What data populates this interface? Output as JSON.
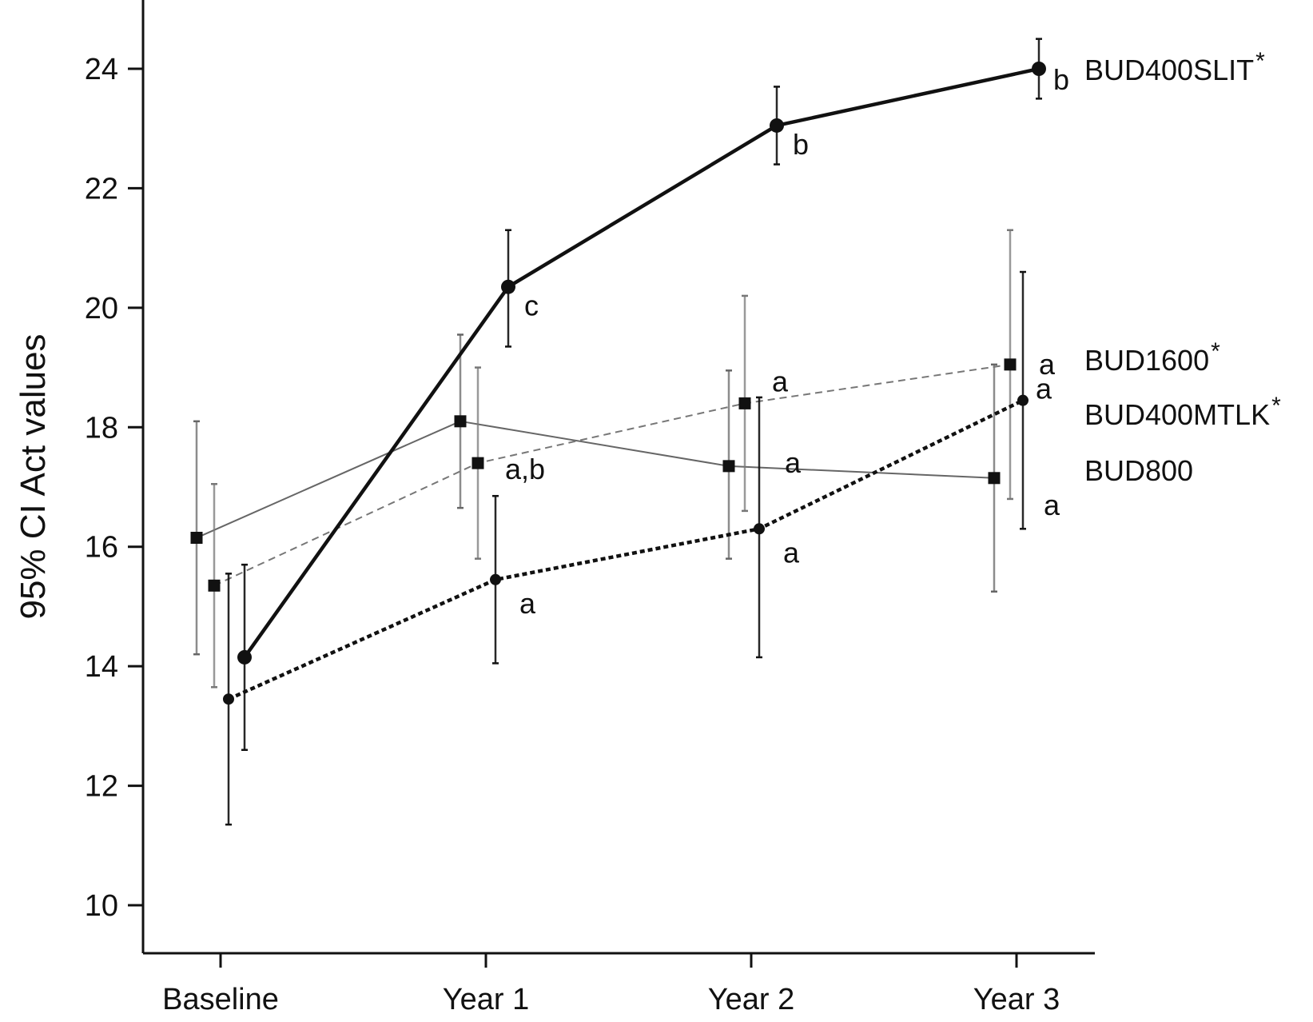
{
  "chart_data": {
    "type": "line",
    "title": "",
    "xlabel": "",
    "ylabel": "95% CI Act values",
    "categories": [
      "Baseline",
      "Year 1",
      "Year 2",
      "Year 3"
    ],
    "yticks": [
      10,
      12,
      14,
      16,
      18,
      20,
      22,
      24
    ],
    "ylim": [
      9.2,
      25.1
    ],
    "grid": false,
    "legend": "inline labels at right end of lines",
    "series": [
      {
        "name": "BUD400SLIT",
        "marker": "circle",
        "line": "solid-thick",
        "color": "#111111",
        "values": [
          14.15,
          20.35,
          23.05,
          24.0
        ],
        "ci_low": [
          12.6,
          19.35,
          22.4,
          23.5
        ],
        "ci_high": [
          15.7,
          21.3,
          23.7,
          24.5
        ],
        "annotations": [
          "",
          "c",
          "b",
          "b"
        ],
        "label_star": "*"
      },
      {
        "name": "BUD1600",
        "marker": "square",
        "line": "dashed-thin",
        "color": "#777777",
        "values": [
          15.35,
          17.4,
          18.4,
          19.05
        ],
        "ci_low": [
          13.65,
          15.8,
          16.6,
          16.8
        ],
        "ci_high": [
          17.05,
          19.0,
          20.2,
          21.3
        ],
        "annotations": [
          "",
          "a,b",
          "a",
          "a"
        ],
        "label_star": "*"
      },
      {
        "name": "BUD400MTLK",
        "marker": "circle",
        "line": "dotted-thick",
        "color": "#111111",
        "values": [
          13.45,
          15.45,
          16.3,
          18.45
        ],
        "ci_low": [
          11.35,
          14.05,
          14.15,
          16.3
        ],
        "ci_high": [
          15.55,
          16.85,
          18.5,
          20.6
        ],
        "annotations": [
          "",
          "a",
          "a",
          "a"
        ],
        "label_star": "*"
      },
      {
        "name": "BUD800",
        "marker": "square",
        "line": "solid-thin",
        "color": "#666666",
        "values": [
          16.15,
          18.1,
          17.35,
          17.15
        ],
        "ci_low": [
          14.2,
          16.65,
          15.8,
          15.25
        ],
        "ci_high": [
          18.1,
          19.55,
          18.95,
          19.05
        ],
        "annotations": [
          "",
          "",
          "a",
          "a"
        ],
        "label_star": ""
      }
    ]
  }
}
